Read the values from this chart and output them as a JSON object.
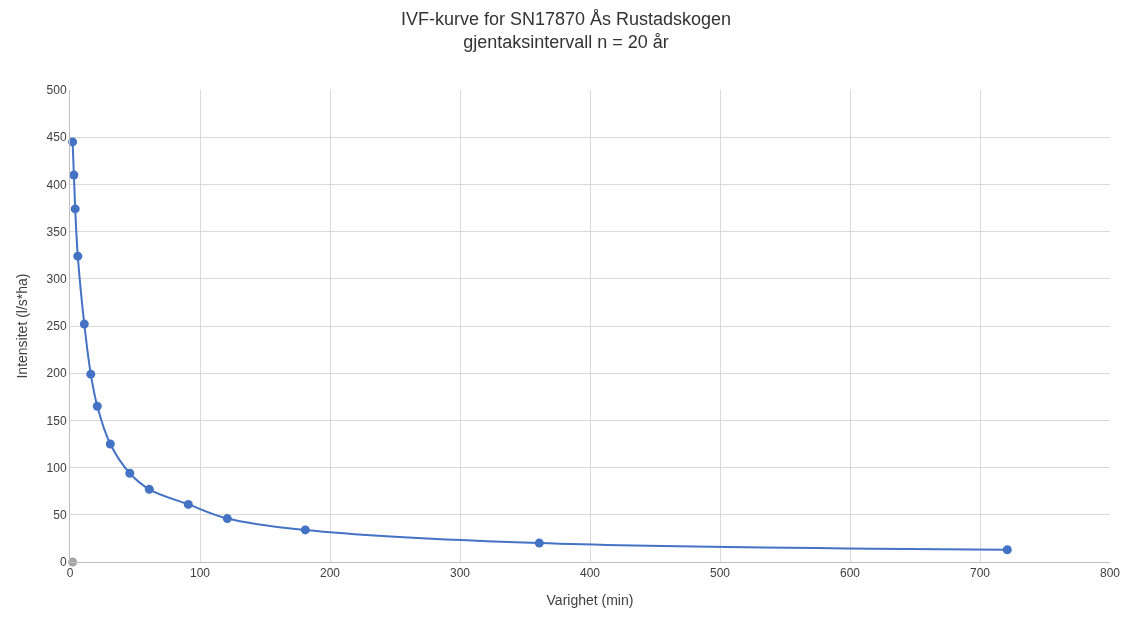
{
  "chart_data": {
    "type": "line",
    "title": "IVF-kurve for SN17870 Ås Rustadskogen",
    "subtitle": "gjentaksintervall n = 20 år",
    "xlabel": "Varighet (min)",
    "ylabel": "Intensitet (l/s*ha)",
    "xlim": [
      0,
      800
    ],
    "xticks": [
      0,
      100,
      200,
      300,
      400,
      500,
      600,
      700,
      800
    ],
    "ylim": [
      0,
      500
    ],
    "yticks": [
      0,
      50,
      100,
      150,
      200,
      250,
      300,
      350,
      400,
      450,
      500
    ],
    "grid": true,
    "marker": "circle",
    "series": [
      {
        "color": "#4472c4",
        "x": [
          2,
          3,
          4,
          6,
          11,
          16,
          21,
          31,
          46,
          61,
          91,
          121,
          181,
          361,
          721
        ],
        "values": [
          445,
          410,
          374,
          324,
          252,
          199,
          165,
          125,
          94,
          77,
          61,
          46,
          34,
          20,
          13
        ]
      },
      {
        "type": "scatter",
        "color": "#a5a5a5",
        "x": [
          2
        ],
        "values": [
          0
        ]
      }
    ]
  }
}
